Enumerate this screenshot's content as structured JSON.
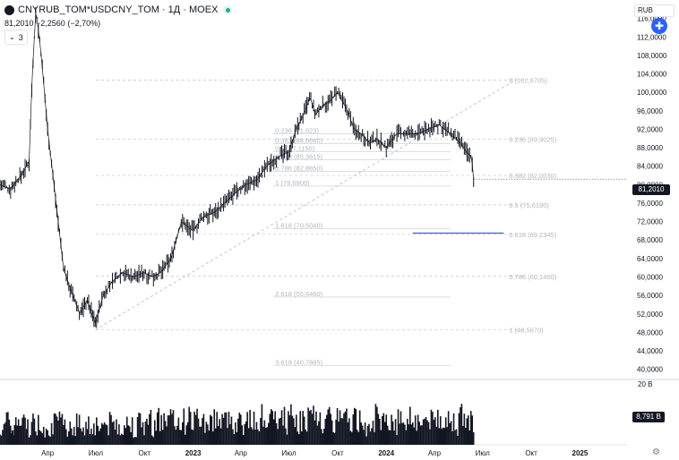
{
  "header": {
    "symbol": "CNYRUB_TOM*USDCNY_TOM · 1Д · MOEX",
    "price_line": "81,2010 −2,2560 (−2,70%)",
    "indicator_count": "3",
    "currency": "RUB",
    "plus_icon": "plus-circle-icon"
  },
  "price_tag": "81,2010",
  "volume_tag": "8,791 B",
  "volume_max_label": "20 B",
  "colors": {
    "candle": "#131722",
    "fib": "#b2b5be",
    "hline": "#2962ff",
    "price_tag_bg": "#131722"
  },
  "chart_data": {
    "type": "line",
    "y_axis_ticks": [
      "116,0000",
      "112,0000",
      "108,0000",
      "104,0000",
      "100,0000",
      "96,0000",
      "92,0000",
      "88,0000",
      "84,0000",
      "80,0000",
      "76,0000",
      "72,0000",
      "68,0000",
      "64,0000",
      "60,0000",
      "56,0000",
      "52,0000",
      "48,0000",
      "44,0000",
      "40,0000"
    ],
    "y_tick_values": [
      116,
      112,
      108,
      104,
      100,
      96,
      92,
      88,
      84,
      80,
      76,
      72,
      68,
      64,
      60,
      56,
      52,
      48,
      44,
      40
    ],
    "ylim": [
      38,
      120
    ],
    "x_axis_ticks": [
      "Апр",
      "Июл",
      "Окт",
      "2023",
      "Апр",
      "Июл",
      "Окт",
      "2024",
      "Апр",
      "Июл",
      "Окт",
      "2025"
    ],
    "x_tick_dates": [
      "2022-04-01",
      "2022-07-01",
      "2022-10-01",
      "2023-01-01",
      "2023-04-01",
      "2023-07-01",
      "2023-10-01",
      "2024-01-01",
      "2024-04-01",
      "2024-07-01",
      "2024-10-01",
      "2025-01-01"
    ],
    "xlim": [
      "2022-01-01",
      "2025-03-31"
    ],
    "series": [
      {
        "x": [
          "2022-01-01",
          "2022-01-20",
          "2022-02-10",
          "2022-02-25",
          "2022-03-03",
          "2022-03-10",
          "2022-03-20",
          "2022-04-01",
          "2022-04-15",
          "2022-05-01",
          "2022-05-15",
          "2022-06-01",
          "2022-06-15",
          "2022-06-30",
          "2022-07-15",
          "2022-08-01",
          "2022-08-20",
          "2022-09-10",
          "2022-09-30",
          "2022-10-15",
          "2022-11-01",
          "2022-11-20",
          "2022-12-10",
          "2022-12-31",
          "2023-01-20",
          "2023-02-10",
          "2023-03-01",
          "2023-03-20",
          "2023-04-10",
          "2023-05-01",
          "2023-05-20",
          "2023-06-10",
          "2023-06-30",
          "2023-07-15",
          "2023-08-01",
          "2023-08-10",
          "2023-08-20",
          "2023-09-01",
          "2023-09-15",
          "2023-10-01",
          "2023-10-10",
          "2023-10-20",
          "2023-11-01",
          "2023-11-15",
          "2023-12-01",
          "2023-12-15",
          "2024-01-01",
          "2024-01-20",
          "2024-02-10",
          "2024-03-01",
          "2024-03-20",
          "2024-04-10",
          "2024-05-01",
          "2024-05-20",
          "2024-06-01",
          "2024-06-10",
          "2024-06-12",
          "2024-06-14"
        ],
        "values": [
          80,
          79,
          82,
          85,
          104,
          118,
          108,
          92,
          78,
          62,
          57,
          52,
          55,
          50,
          56,
          59,
          61,
          60,
          61,
          60,
          61,
          64,
          72,
          70,
          73,
          74,
          76,
          78,
          80,
          81,
          84,
          86,
          87,
          92,
          96,
          99,
          95,
          97,
          98,
          100,
          98,
          96,
          92,
          91,
          89,
          90,
          88,
          91,
          91,
          91,
          92,
          93,
          91,
          89,
          87,
          86,
          84,
          81.2
        ]
      }
    ],
    "volume_scale_max": 20,
    "volume_unit": "B",
    "fib_extension": {
      "levels": [
        {
          "label": "0 (102,6705)",
          "value": 102.6705
        },
        {
          "label": "0.236 (89,9025)",
          "value": 89.9025
        },
        {
          "label": "0.382 (82,0030)",
          "value": 82.003
        },
        {
          "label": "0.5 (75,6190)",
          "value": 75.619
        },
        {
          "label": "0.618 (69,2345)",
          "value": 69.2345
        },
        {
          "label": "0.786 (60,1450)",
          "value": 60.145
        },
        {
          "label": "1 (48,5670)",
          "value": 48.567
        }
      ]
    },
    "fib_retracement": {
      "levels": [
        {
          "label": "0.236 (91,023)",
          "value": 91.023
        },
        {
          "label": "0.382 (88,8660)",
          "value": 88.866
        },
        {
          "label": "0.5 (87,1150)",
          "value": 87.115
        },
        {
          "label": "0.618 (85,3615)",
          "value": 85.3615
        },
        {
          "label": "0.786 (82,8650)",
          "value": 82.865
        },
        {
          "label": "1 (79,6900)",
          "value": 79.69
        },
        {
          "label": "1.618 (70,5040)",
          "value": 70.504
        },
        {
          "label": "2.618 (55,6460)",
          "value": 55.646
        },
        {
          "label": "3.618 (40,7885)",
          "value": 40.7885
        }
      ]
    },
    "horizontal_line": {
      "value": 69.5
    },
    "trend_line": {
      "from_value": 48.567,
      "to_value": 102.6705
    }
  }
}
